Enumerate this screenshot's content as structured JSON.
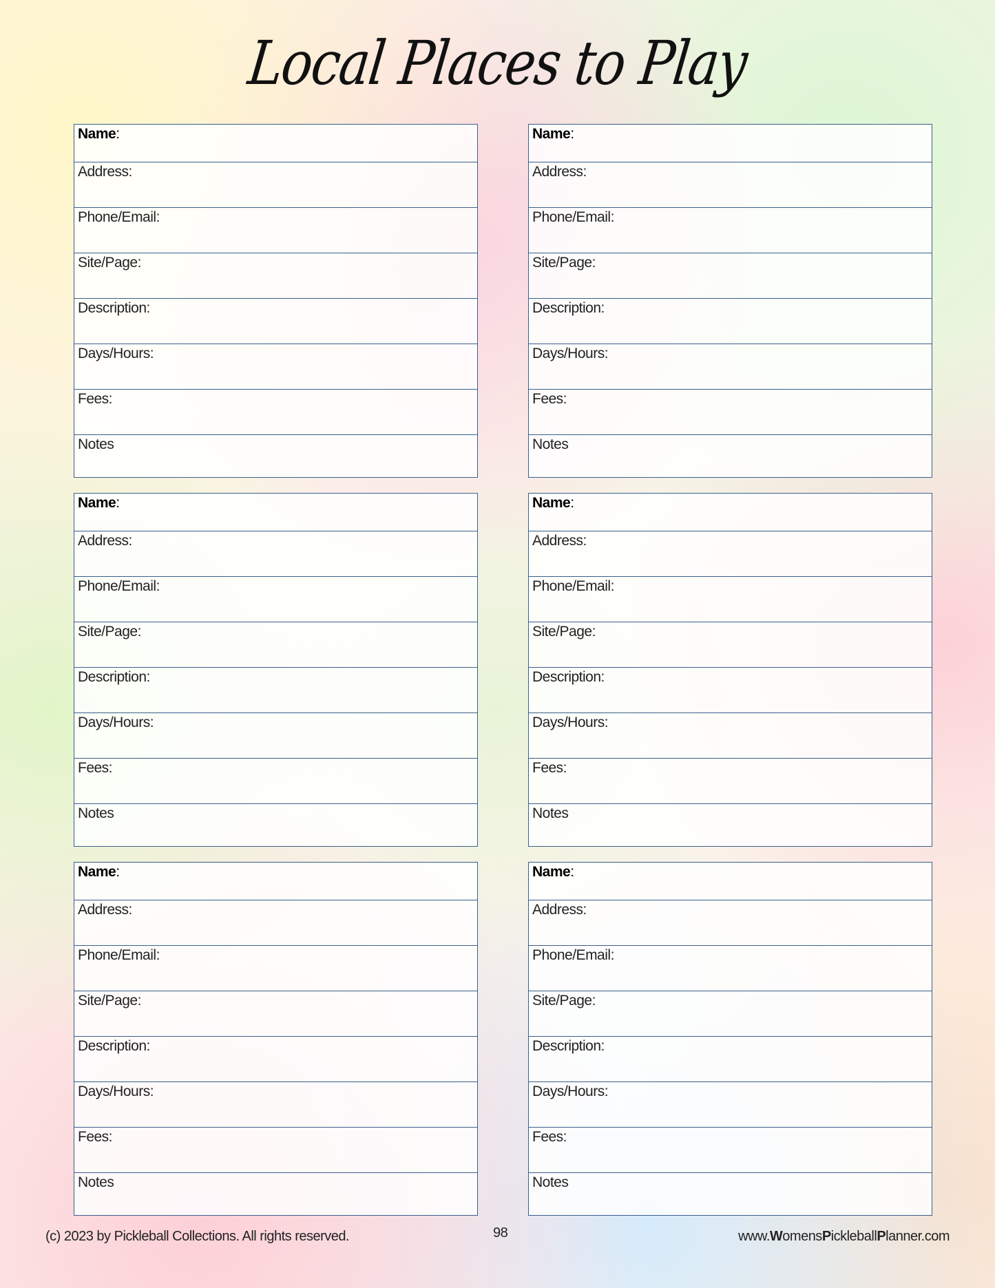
{
  "title": "Local Places to Play",
  "fields": [
    "Name",
    "Address:",
    "Phone/Email:",
    "Site/Page:",
    "Description:",
    "Days/Hours:",
    "Fees:",
    "Notes"
  ],
  "card_count": 6,
  "footer": {
    "copyright": "(c) 2023 by Pickleball Collections.  All rights reserved.",
    "page_number": "98",
    "website_parts": [
      [
        "www.",
        false
      ],
      [
        "W",
        true
      ],
      [
        "omens",
        false
      ],
      [
        "P",
        true
      ],
      [
        "ickleball",
        false
      ],
      [
        "P",
        true
      ],
      [
        "lanner.com",
        false
      ]
    ]
  },
  "colors": {
    "border": "#3a5f8a"
  }
}
